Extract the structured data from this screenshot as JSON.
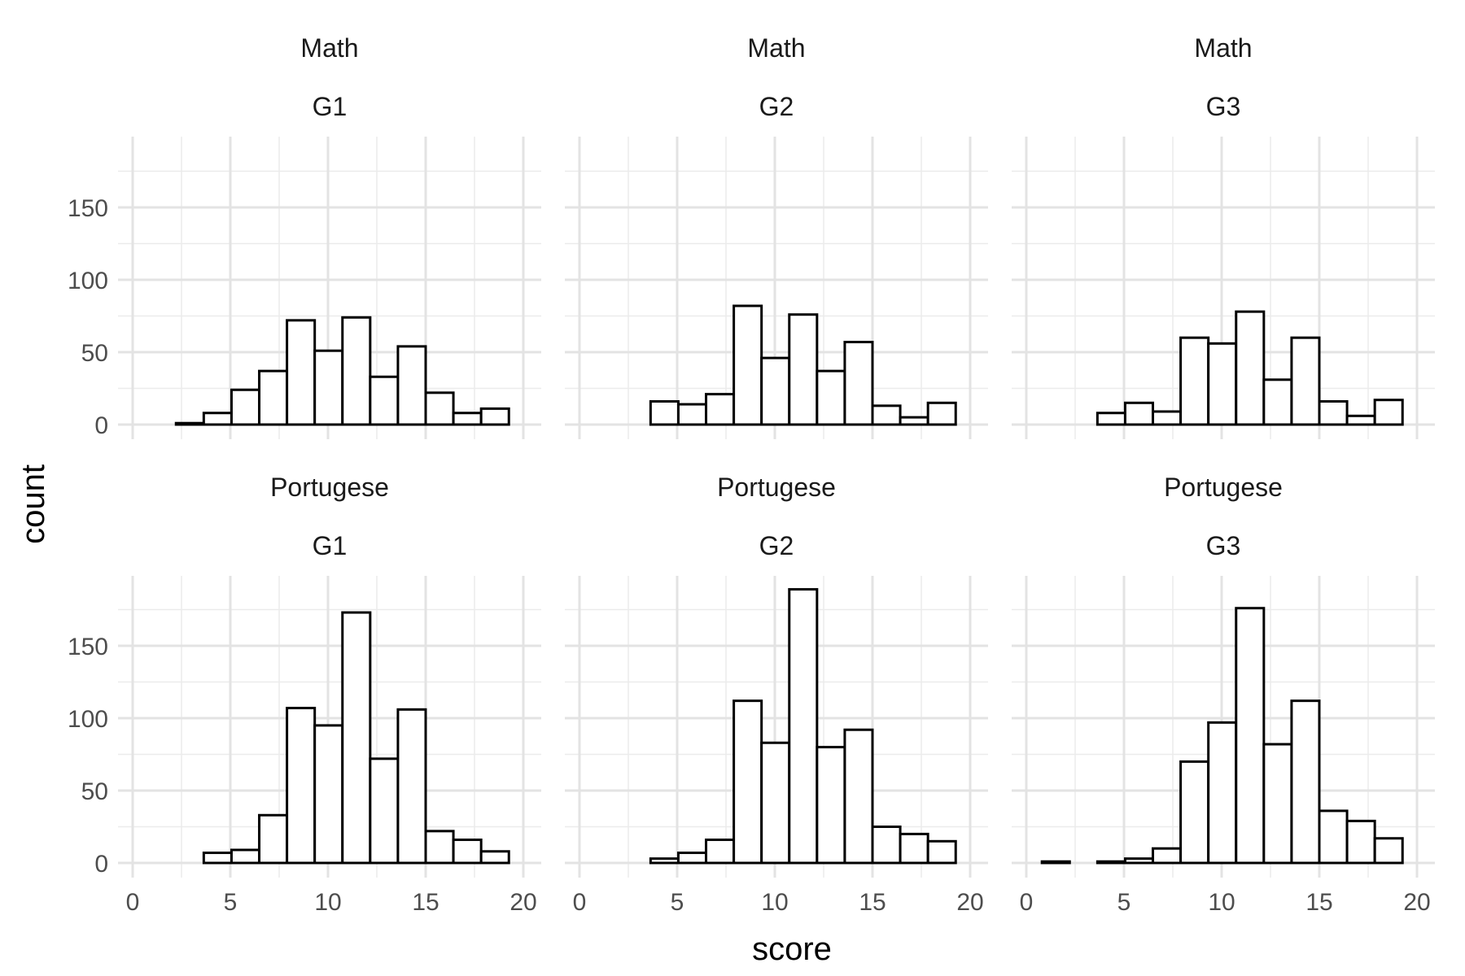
{
  "chart_data": {
    "type": "bar",
    "xlabel": "score",
    "ylabel": "count",
    "xlim": [
      0,
      20
    ],
    "ylim": [
      0,
      190
    ],
    "x_ticks": [
      0,
      5,
      10,
      15,
      20
    ],
    "y_ticks": [
      0,
      50,
      100,
      150
    ],
    "grid": true,
    "bin_width": 1.42,
    "bin_start": 0.8,
    "panels": [
      {
        "strip_top": "Math",
        "strip_bottom": "G1",
        "values": [
          0,
          1,
          8,
          24,
          37,
          72,
          51,
          74,
          33,
          54,
          22,
          8,
          11
        ]
      },
      {
        "strip_top": "Math",
        "strip_bottom": "G2",
        "values": [
          0,
          0,
          16,
          14,
          21,
          82,
          46,
          76,
          37,
          57,
          13,
          5,
          15
        ]
      },
      {
        "strip_top": "Math",
        "strip_bottom": "G3",
        "values": [
          0,
          0,
          8,
          15,
          9,
          60,
          56,
          78,
          31,
          60,
          16,
          6,
          17
        ]
      },
      {
        "strip_top": "Portugese",
        "strip_bottom": "G1",
        "values": [
          0,
          0,
          7,
          9,
          33,
          107,
          95,
          173,
          72,
          106,
          22,
          16,
          8
        ]
      },
      {
        "strip_top": "Portugese",
        "strip_bottom": "G2",
        "values": [
          0,
          0,
          3,
          7,
          16,
          112,
          83,
          189,
          80,
          92,
          25,
          20,
          15
        ]
      },
      {
        "strip_top": "Portugese",
        "strip_bottom": "G3",
        "values": [
          1,
          0,
          1,
          3,
          10,
          70,
          97,
          176,
          82,
          112,
          36,
          29,
          17
        ]
      }
    ]
  }
}
